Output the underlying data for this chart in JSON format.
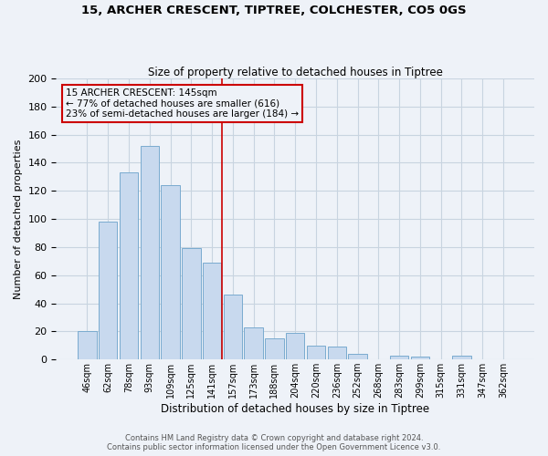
{
  "title_line1": "15, ARCHER CRESCENT, TIPTREE, COLCHESTER, CO5 0GS",
  "title_line2": "Size of property relative to detached houses in Tiptree",
  "xlabel": "Distribution of detached houses by size in Tiptree",
  "ylabel": "Number of detached properties",
  "bar_labels": [
    "46sqm",
    "62sqm",
    "78sqm",
    "93sqm",
    "109sqm",
    "125sqm",
    "141sqm",
    "157sqm",
    "173sqm",
    "188sqm",
    "204sqm",
    "220sqm",
    "236sqm",
    "252sqm",
    "268sqm",
    "283sqm",
    "299sqm",
    "315sqm",
    "331sqm",
    "347sqm",
    "362sqm"
  ],
  "bar_values": [
    20,
    98,
    133,
    152,
    124,
    79,
    69,
    46,
    23,
    15,
    19,
    10,
    9,
    4,
    0,
    3,
    2,
    0,
    3,
    0,
    0
  ],
  "bar_color": "#c8d9ee",
  "bar_edge_color": "#7aabcf",
  "vline_x": 6.5,
  "vline_color": "#cc0000",
  "annotation_text": "15 ARCHER CRESCENT: 145sqm\n← 77% of detached houses are smaller (616)\n23% of semi-detached houses are larger (184) →",
  "annotation_box_color": "#cc0000",
  "ylim": [
    0,
    200
  ],
  "yticks": [
    0,
    20,
    40,
    60,
    80,
    100,
    120,
    140,
    160,
    180,
    200
  ],
  "footer_line1": "Contains HM Land Registry data © Crown copyright and database right 2024.",
  "footer_line2": "Contains public sector information licensed under the Open Government Licence v3.0.",
  "grid_color": "#c8d4e0",
  "background_color": "#eef2f8"
}
